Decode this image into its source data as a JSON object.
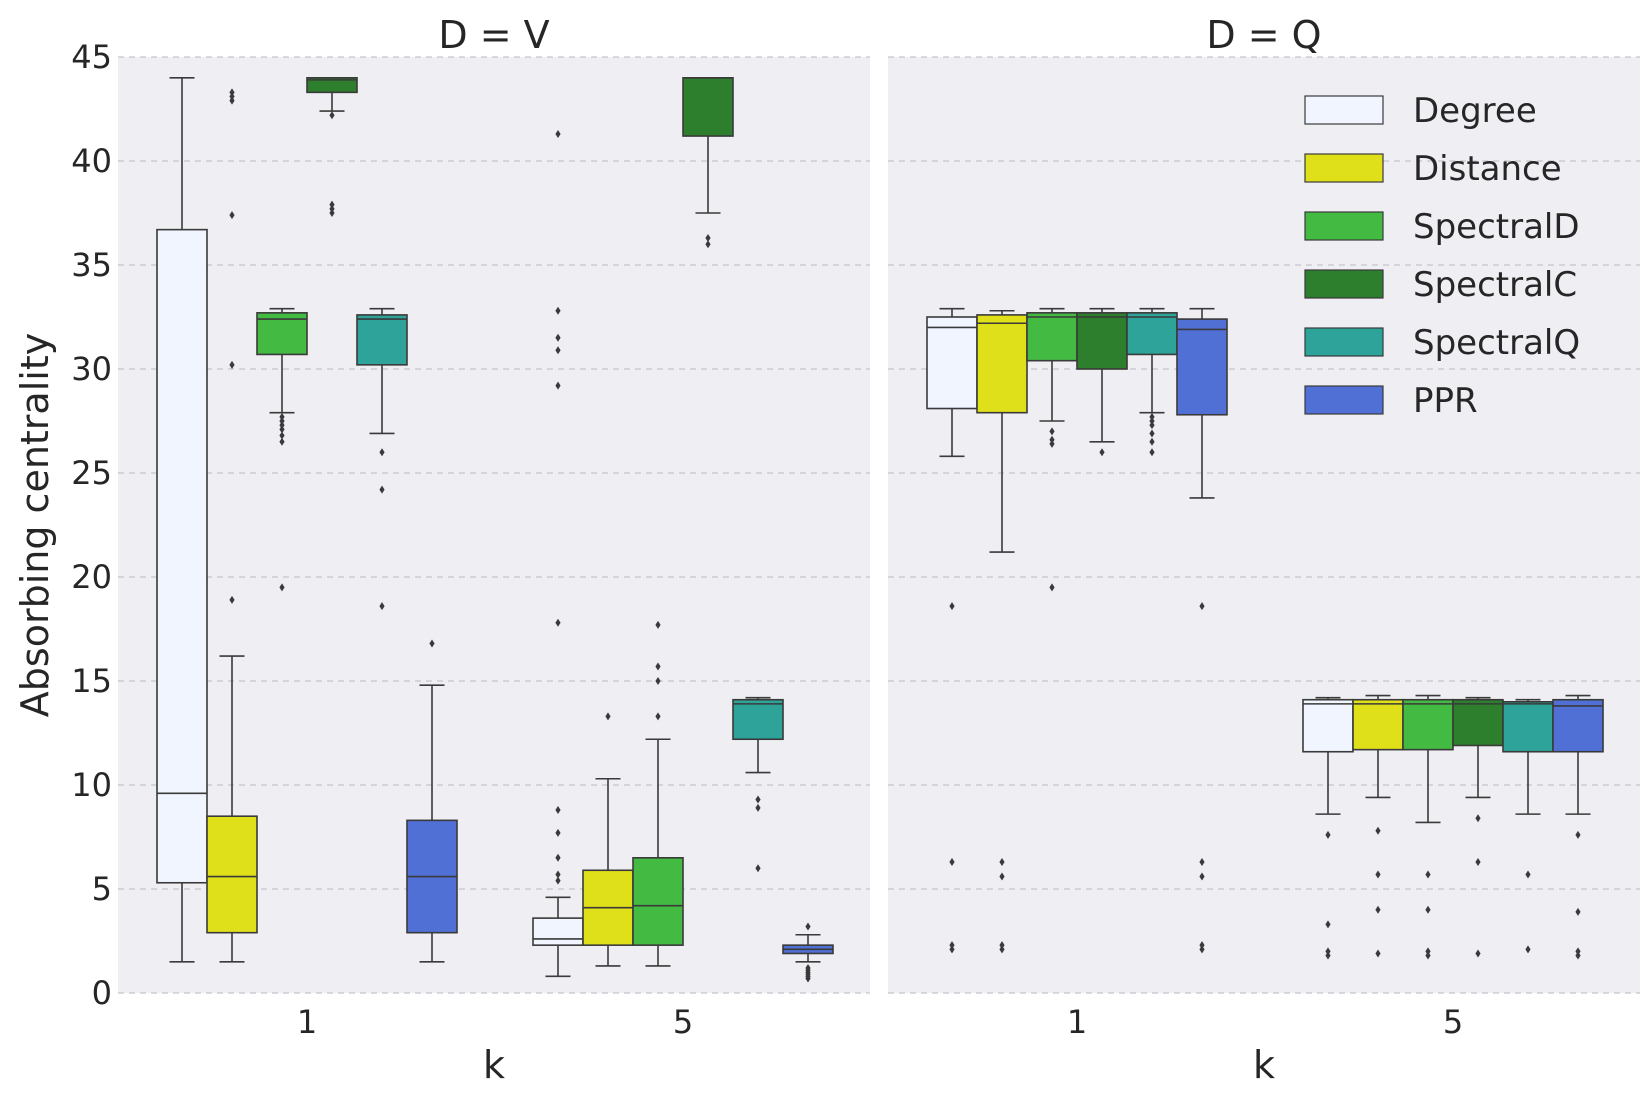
{
  "chart_data": {
    "type": "box",
    "ylabel": "Absorbing centrality",
    "ylim": [
      0,
      45
    ],
    "yticks": [
      "0",
      "5",
      "10",
      "15",
      "20",
      "25",
      "30",
      "35",
      "40",
      "45"
    ],
    "grid": true,
    "legend_position": "top-right",
    "categories": [
      "1",
      "5"
    ],
    "methods": [
      {
        "name": "Degree",
        "color": "#f0f5ff"
      },
      {
        "name": "Distance",
        "color": "#e0e01a"
      },
      {
        "name": "SpectralD",
        "color": "#43bb43"
      },
      {
        "name": "SpectralC",
        "color": "#2d7f2d"
      },
      {
        "name": "SpectralQ",
        "color": "#2ea39a"
      },
      {
        "name": "PPR",
        "color": "#5070d6"
      }
    ],
    "panels": [
      {
        "title": "D = V",
        "xlabel": "k",
        "groups": [
          {
            "k": "1",
            "boxes": [
              {
                "method": "Degree",
                "whislo": 1.5,
                "q1": 5.3,
                "med": 9.6,
                "q3": 36.7,
                "whishi": 44.0,
                "fliers": []
              },
              {
                "method": "Distance",
                "whislo": 1.5,
                "q1": 2.9,
                "med": 5.6,
                "q3": 8.5,
                "whishi": 16.2,
                "fliers": [
                  18.9,
                  30.2,
                  37.4,
                  42.9,
                  43.1,
                  43.3
                ]
              },
              {
                "method": "SpectralD",
                "whislo": 27.9,
                "q1": 30.7,
                "med": 32.4,
                "q3": 32.7,
                "whishi": 32.9,
                "fliers": [
                  19.5,
                  26.5,
                  26.8,
                  27.1,
                  27.3,
                  27.5,
                  27.7
                ]
              },
              {
                "method": "SpectralC",
                "whislo": 42.4,
                "q1": 43.3,
                "med": 43.9,
                "q3": 44.0,
                "whishi": 44.0,
                "fliers": [
                  37.5,
                  37.7,
                  37.9,
                  42.2
                ]
              },
              {
                "method": "SpectralQ",
                "whislo": 26.9,
                "q1": 30.2,
                "med": 32.4,
                "q3": 32.6,
                "whishi": 32.9,
                "fliers": [
                  18.6,
                  24.2,
                  26.0
                ]
              },
              {
                "method": "PPR",
                "whislo": 1.5,
                "q1": 2.9,
                "med": 5.6,
                "q3": 8.3,
                "whishi": 14.8,
                "fliers": [
                  16.8
                ]
              }
            ]
          },
          {
            "k": "5",
            "boxes": [
              {
                "method": "Degree",
                "whislo": 0.8,
                "q1": 2.3,
                "med": 2.6,
                "q3": 3.6,
                "whishi": 4.6,
                "fliers": [
                  5.4,
                  5.7,
                  6.5,
                  7.7,
                  8.8,
                  17.8,
                  29.2,
                  30.9,
                  31.5,
                  32.8,
                  41.3
                ]
              },
              {
                "method": "Distance",
                "whislo": 1.3,
                "q1": 2.3,
                "med": 4.1,
                "q3": 5.9,
                "whishi": 10.3,
                "fliers": [
                  13.3
                ]
              },
              {
                "method": "SpectralD",
                "whislo": 1.3,
                "q1": 2.3,
                "med": 4.2,
                "q3": 6.5,
                "whishi": 12.2,
                "fliers": [
                  13.3,
                  15.0,
                  15.7,
                  17.7
                ]
              },
              {
                "method": "SpectralC",
                "whislo": 37.5,
                "q1": 41.2,
                "med": 44.0,
                "q3": 44.0,
                "whishi": 44.0,
                "fliers": [
                  36.0,
                  36.3
                ]
              },
              {
                "method": "SpectralQ",
                "whislo": 10.6,
                "q1": 12.2,
                "med": 13.9,
                "q3": 14.1,
                "whishi": 14.2,
                "fliers": [
                  6.0,
                  8.9,
                  9.3
                ]
              },
              {
                "method": "PPR",
                "whislo": 1.5,
                "q1": 1.9,
                "med": 2.1,
                "q3": 2.3,
                "whishi": 2.8,
                "fliers": [
                  0.7,
                  0.8,
                  0.9,
                  1.0,
                  1.1,
                  1.2,
                  3.2
                ]
              }
            ]
          }
        ]
      },
      {
        "title": "D = Q",
        "xlabel": "k",
        "groups": [
          {
            "k": "1",
            "boxes": [
              {
                "method": "Degree",
                "whislo": 25.8,
                "q1": 28.1,
                "med": 32.0,
                "q3": 32.5,
                "whishi": 32.9,
                "fliers": [
                  2.1,
                  2.3,
                  6.3,
                  18.6
                ]
              },
              {
                "method": "Distance",
                "whislo": 21.2,
                "q1": 27.9,
                "med": 32.2,
                "q3": 32.6,
                "whishi": 32.8,
                "fliers": [
                  2.1,
                  2.3,
                  5.6,
                  6.3
                ]
              },
              {
                "method": "SpectralD",
                "whislo": 27.5,
                "q1": 30.4,
                "med": 32.5,
                "q3": 32.7,
                "whishi": 32.9,
                "fliers": [
                  19.5,
                  26.4,
                  26.6,
                  27.0
                ]
              },
              {
                "method": "SpectralC",
                "whislo": 26.5,
                "q1": 30.0,
                "med": 32.5,
                "q3": 32.7,
                "whishi": 32.9,
                "fliers": [
                  26.0
                ]
              },
              {
                "method": "SpectralQ",
                "whislo": 27.9,
                "q1": 30.7,
                "med": 32.5,
                "q3": 32.7,
                "whishi": 32.9,
                "fliers": [
                  26.0,
                  26.5,
                  26.9,
                  27.3,
                  27.5,
                  27.7
                ]
              },
              {
                "method": "PPR",
                "whislo": 23.8,
                "q1": 27.8,
                "med": 31.9,
                "q3": 32.4,
                "whishi": 32.9,
                "fliers": [
                  2.1,
                  2.3,
                  5.6,
                  6.3,
                  18.6
                ]
              }
            ]
          },
          {
            "k": "5",
            "boxes": [
              {
                "method": "Degree",
                "whislo": 8.6,
                "q1": 11.6,
                "med": 13.9,
                "q3": 14.1,
                "whishi": 14.2,
                "fliers": [
                  1.8,
                  2.0,
                  3.3,
                  7.6
                ]
              },
              {
                "method": "Distance",
                "whislo": 9.4,
                "q1": 11.7,
                "med": 13.9,
                "q3": 14.1,
                "whishi": 14.3,
                "fliers": [
                  1.9,
                  4.0,
                  5.7,
                  7.8
                ]
              },
              {
                "method": "SpectralD",
                "whislo": 8.2,
                "q1": 11.7,
                "med": 13.9,
                "q3": 14.1,
                "whishi": 14.3,
                "fliers": [
                  1.8,
                  2.0,
                  4.0,
                  5.7
                ]
              },
              {
                "method": "SpectralC",
                "whislo": 9.4,
                "q1": 11.9,
                "med": 13.9,
                "q3": 14.1,
                "whishi": 14.2,
                "fliers": [
                  1.9,
                  6.3,
                  8.4
                ]
              },
              {
                "method": "SpectralQ",
                "whislo": 8.6,
                "q1": 11.6,
                "med": 13.9,
                "q3": 14.0,
                "whishi": 14.1,
                "fliers": [
                  2.1,
                  5.7
                ]
              },
              {
                "method": "PPR",
                "whislo": 8.6,
                "q1": 11.6,
                "med": 13.8,
                "q3": 14.1,
                "whishi": 14.3,
                "fliers": [
                  1.8,
                  2.0,
                  3.9,
                  7.6
                ]
              }
            ]
          }
        ]
      }
    ]
  }
}
